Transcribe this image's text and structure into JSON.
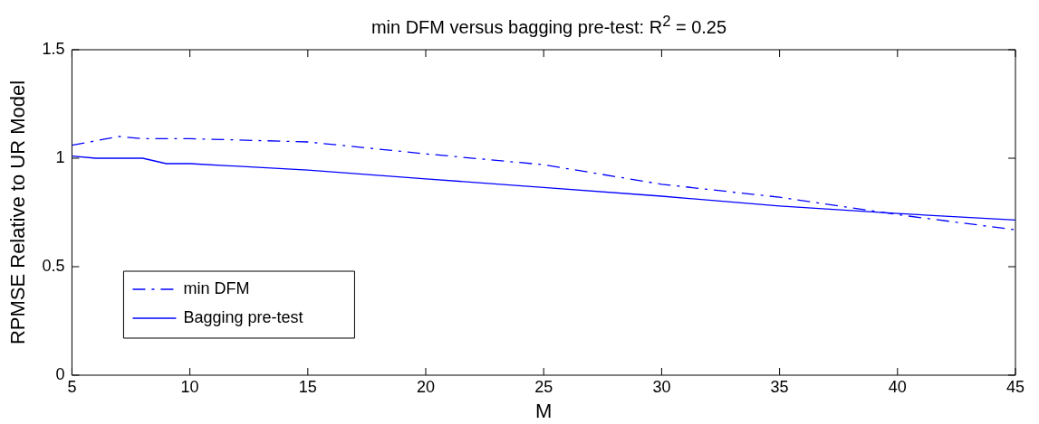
{
  "chart_data": {
    "type": "line",
    "title": "min DFM versus bagging pre-test: R$^{2}$ = 0.25",
    "xlabel": "M",
    "ylabel": "RPMSE Relative to UR Model",
    "xlim": [
      5,
      45
    ],
    "xticks": [
      5,
      10,
      15,
      20,
      25,
      30,
      35,
      40,
      45
    ],
    "ylim": [
      0,
      1.5
    ],
    "yticks": [
      0,
      0.5,
      1,
      1.5
    ],
    "legend": "bottom left",
    "grid": false,
    "marker": "none",
    "series": [
      {
        "name": "min DFM",
        "color": "#0000ff",
        "line_style": "dashed",
        "x": [
          5,
          7,
          8,
          10,
          15,
          20,
          25,
          30,
          35,
          40,
          45
        ],
        "values": [
          1.06,
          1.1,
          1.09,
          1.09,
          1.075,
          1.02,
          0.97,
          0.88,
          0.82,
          0.74,
          0.67
        ]
      },
      {
        "name": "Bagging pre-test",
        "color": "#0000ff",
        "line_style": "solid",
        "x": [
          5,
          6,
          8,
          9,
          10,
          15,
          20,
          25,
          30,
          35,
          40,
          45
        ],
        "values": [
          1.01,
          1.0,
          1.0,
          0.975,
          0.975,
          0.945,
          0.905,
          0.865,
          0.825,
          0.78,
          0.745,
          0.715
        ]
      }
    ]
  }
}
